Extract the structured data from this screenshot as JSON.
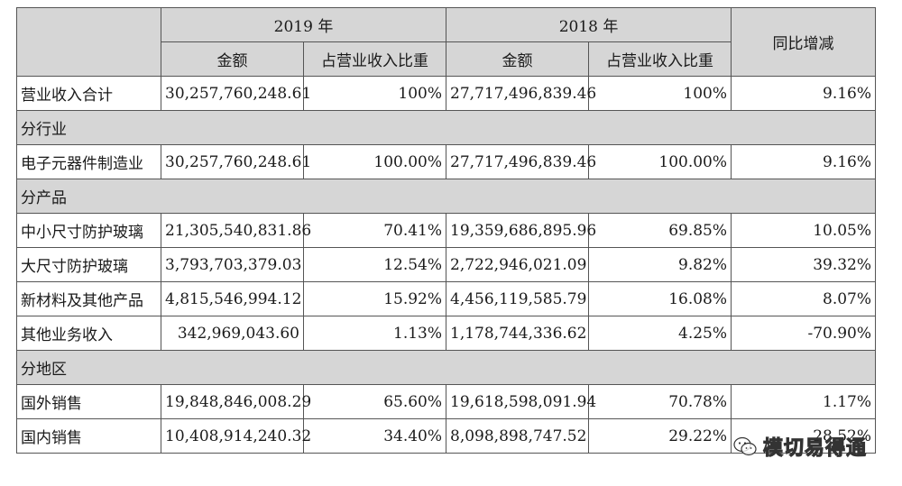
{
  "header": {
    "year_2019": "2019 年",
    "year_2018": "2018 年",
    "yoy": "同比增减",
    "amount": "金额",
    "ratio": "占营业收入比重"
  },
  "total": {
    "label": "营业收入合计",
    "amt2019": "30,257,760,248.61",
    "pct2019": "100%",
    "amt2018": "27,717,496,839.46",
    "pct2018": "100%",
    "yoy": "9.16%"
  },
  "sections": [
    {
      "title": "分行业",
      "rows": [
        {
          "label": "电子元器件制造业",
          "amt2019": "30,257,760,248.61",
          "pct2019": "100.00%",
          "amt2018": "27,717,496,839.46",
          "pct2018": "100.00%",
          "yoy": "9.16%"
        }
      ]
    },
    {
      "title": "分产品",
      "rows": [
        {
          "label": "中小尺寸防护玻璃",
          "amt2019": "21,305,540,831.86",
          "pct2019": "70.41%",
          "amt2018": "19,359,686,895.96",
          "pct2018": "69.85%",
          "yoy": "10.05%"
        },
        {
          "label": "大尺寸防护玻璃",
          "amt2019": "3,793,703,379.03",
          "pct2019": "12.54%",
          "amt2018": "2,722,946,021.09",
          "pct2018": "9.82%",
          "yoy": "39.32%"
        },
        {
          "label": "新材料及其他产品",
          "amt2019": "4,815,546,994.12",
          "pct2019": "15.92%",
          "amt2018": "4,456,119,585.79",
          "pct2018": "16.08%",
          "yoy": "8.07%"
        },
        {
          "label": "其他业务收入",
          "amt2019": "342,969,043.60",
          "pct2019": "1.13%",
          "amt2018": "1,178,744,336.62",
          "pct2018": "4.25%",
          "yoy": "-70.90%"
        }
      ]
    },
    {
      "title": "分地区",
      "rows": [
        {
          "label": "国外销售",
          "amt2019": "19,848,846,008.29",
          "pct2019": "65.60%",
          "amt2018": "19,618,598,091.94",
          "pct2018": "70.78%",
          "yoy": "1.17%"
        },
        {
          "label": "国内销售",
          "amt2019": "10,408,914,240.32",
          "pct2019": "34.40%",
          "amt2018": "8,098,898,747.52",
          "pct2018": "29.22%",
          "yoy": "28.52%"
        }
      ]
    }
  ],
  "watermark": {
    "text": "模切易得通",
    "icon": "wechat-logo-icon"
  }
}
